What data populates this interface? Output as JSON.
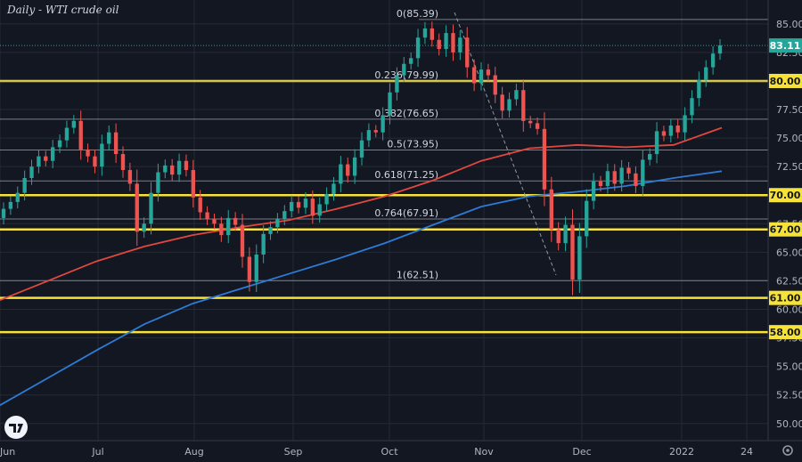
{
  "chart_data": {
    "type": "candlestick",
    "title": "Daily - WTI crude oil",
    "x_ticks": [
      "Jun",
      "Jul",
      "Aug",
      "Sep",
      "Oct",
      "Nov",
      "Dec",
      "2022",
      "24"
    ],
    "y_ticks": [
      "50.00",
      "52.50",
      "55.00",
      "57.50",
      "60.00",
      "62.50",
      "65.00",
      "67.50",
      "70.00",
      "72.50",
      "75.00",
      "77.50",
      "80.00",
      "82.50",
      "85.00"
    ],
    "ylim": [
      48.5,
      86.0
    ],
    "grid": true,
    "last_price": {
      "label": "83.11",
      "value": 83.11,
      "color": "#26a69a"
    },
    "horizontal_levels": [
      {
        "label": "80.00",
        "value": 80.0
      },
      {
        "label": "70.00",
        "value": 70.0
      },
      {
        "label": "67.00",
        "value": 67.0
      },
      {
        "label": "61.00",
        "value": 61.0
      },
      {
        "label": "58.00",
        "value": 58.0
      }
    ],
    "fibonacci": [
      {
        "label": "0(85.39)",
        "value": 85.39
      },
      {
        "label": "0.236(79.99)",
        "value": 79.99
      },
      {
        "label": "0.382(76.65)",
        "value": 76.65
      },
      {
        "label": "0.5(73.95)",
        "value": 73.95
      },
      {
        "label": "0.618(71.25)",
        "value": 71.25
      },
      {
        "label": "0.764(67.91)",
        "value": 67.91
      },
      {
        "label": "1(62.51)",
        "value": 62.51
      }
    ],
    "moving_averages": [
      {
        "color": "#e0483f",
        "values": [
          60.8,
          62.5,
          64.2,
          65.5,
          66.5,
          67.2,
          67.8,
          68.8,
          69.9,
          71.3,
          73.0,
          74.1,
          74.4,
          74.2,
          74.4,
          75.9
        ]
      },
      {
        "color": "#2d7bd6",
        "values": [
          51.6,
          54.0,
          56.4,
          58.7,
          60.5,
          61.8,
          63.1,
          64.4,
          65.8,
          67.4,
          69.0,
          69.9,
          70.3,
          70.8,
          71.5,
          72.1
        ]
      }
    ],
    "candles_close": [
      68.8,
      69.4,
      70.2,
      71.5,
      72.5,
      73.4,
      73.0,
      74.2,
      74.8,
      75.9,
      76.5,
      74.0,
      73.4,
      72.5,
      74.5,
      75.5,
      73.6,
      72.2,
      71.0,
      66.8,
      67.5,
      70.2,
      72.0,
      72.6,
      71.8,
      73.0,
      72.2,
      69.8,
      68.5,
      67.9,
      67.5,
      66.5,
      68.0,
      67.4,
      64.6,
      62.4,
      64.8,
      66.6,
      67.2,
      67.9,
      68.6,
      69.4,
      68.9,
      69.7,
      68.2,
      69.2,
      70.1,
      71.0,
      72.7,
      71.7,
      73.3,
      74.8,
      75.7,
      75.5,
      77.0,
      79.0,
      80.5,
      81.5,
      82.0,
      83.8,
      84.6,
      83.6,
      82.8,
      84.2,
      82.5,
      83.8,
      81.2,
      79.8,
      81.0,
      80.5,
      78.8,
      77.4,
      78.4,
      79.2,
      76.5,
      76.3,
      75.8,
      70.5,
      67.0,
      65.8,
      67.4,
      62.6,
      66.4,
      69.5,
      71.2,
      70.8,
      72.1,
      71.0,
      72.4,
      71.9,
      70.8,
      73.1,
      73.6,
      75.6,
      75.2,
      76.1,
      75.5,
      77.0,
      78.5,
      80.1,
      81.2,
      82.4,
      83.11
    ]
  }
}
